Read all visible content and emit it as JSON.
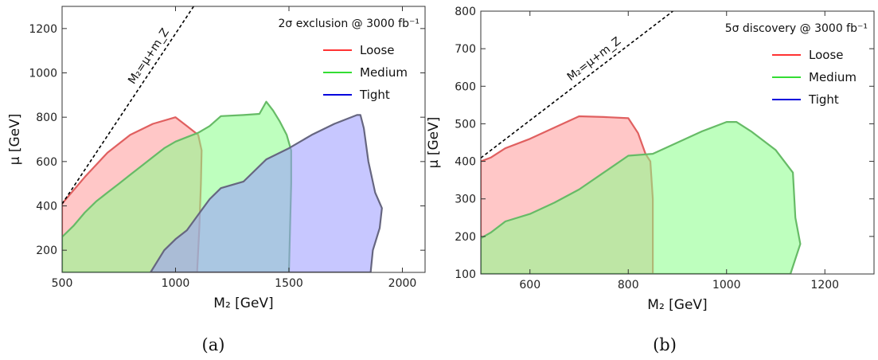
{
  "chart_data": [
    {
      "type": "area",
      "caption": "(a)",
      "title": "2σ exclusion @ 3000 fb⁻¹",
      "xlabel": "M₂ [GeV]",
      "ylabel": "μ [GeV]",
      "xlim": [
        500,
        2100
      ],
      "ylim": [
        100,
        1300
      ],
      "xticks": [
        500,
        1000,
        1500,
        2000
      ],
      "yticks": [
        200,
        400,
        600,
        800,
        1000,
        1200
      ],
      "grid": false,
      "legend_position": "top-right",
      "line": {
        "label": "M₂=μ+m_Z",
        "style": "dashed",
        "color": "#000000",
        "points": [
          [
            500,
            409
          ],
          [
            1080,
            1300
          ]
        ]
      },
      "series": [
        {
          "name": "Loose",
          "color": "#ff3333",
          "fill": "#ff9999",
          "border": "#e06060",
          "points": [
            [
              500,
              100
            ],
            [
              500,
              410
            ],
            [
              600,
              530
            ],
            [
              700,
              640
            ],
            [
              800,
              720
            ],
            [
              900,
              770
            ],
            [
              1000,
              800
            ],
            [
              1050,
              760
            ],
            [
              1100,
              720
            ],
            [
              1115,
              650
            ],
            [
              1112,
              500
            ],
            [
              1105,
              300
            ],
            [
              1095,
              100
            ]
          ]
        },
        {
          "name": "Medium",
          "color": "#33dd33",
          "fill": "#88ff88",
          "border": "#66bb66",
          "points": [
            [
              500,
              100
            ],
            [
              500,
              260
            ],
            [
              550,
              310
            ],
            [
              600,
              370
            ],
            [
              650,
              420
            ],
            [
              700,
              460
            ],
            [
              750,
              500
            ],
            [
              800,
              540
            ],
            [
              850,
              580
            ],
            [
              900,
              620
            ],
            [
              950,
              660
            ],
            [
              1000,
              690
            ],
            [
              1050,
              710
            ],
            [
              1100,
              730
            ],
            [
              1150,
              760
            ],
            [
              1200,
              805
            ],
            [
              1300,
              810
            ],
            [
              1370,
              815
            ],
            [
              1400,
              870
            ],
            [
              1430,
              830
            ],
            [
              1460,
              780
            ],
            [
              1490,
              720
            ],
            [
              1510,
              650
            ],
            [
              1510,
              500
            ],
            [
              1505,
              300
            ],
            [
              1500,
              100
            ]
          ]
        },
        {
          "name": "Tight",
          "color": "#0000dd",
          "fill": "#9999ff",
          "border": "#666680",
          "points": [
            [
              890,
              100
            ],
            [
              950,
              200
            ],
            [
              1000,
              250
            ],
            [
              1050,
              290
            ],
            [
              1100,
              360
            ],
            [
              1150,
              430
            ],
            [
              1200,
              480
            ],
            [
              1300,
              510
            ],
            [
              1400,
              610
            ],
            [
              1500,
              660
            ],
            [
              1600,
              720
            ],
            [
              1700,
              770
            ],
            [
              1800,
              810
            ],
            [
              1815,
              810
            ],
            [
              1830,
              750
            ],
            [
              1850,
              600
            ],
            [
              1880,
              460
            ],
            [
              1910,
              390
            ],
            [
              1900,
              300
            ],
            [
              1870,
              200
            ],
            [
              1860,
              100
            ]
          ]
        }
      ]
    },
    {
      "type": "area",
      "caption": "(b)",
      "title": "5σ discovery @ 3000 fb⁻¹",
      "xlabel": "M₂ [GeV]",
      "ylabel": "μ [GeV]",
      "xlim": [
        500,
        1300
      ],
      "ylim": [
        100,
        800
      ],
      "xticks": [
        600,
        800,
        1000,
        1200
      ],
      "yticks": [
        100,
        200,
        300,
        400,
        500,
        600,
        700,
        800
      ],
      "grid": false,
      "legend_position": "top-right",
      "line": {
        "label": "M₂=μ+m_Z",
        "style": "dashed",
        "color": "#000000",
        "points": [
          [
            500,
            409
          ],
          [
            891,
            800
          ]
        ]
      },
      "series": [
        {
          "name": "Loose",
          "color": "#ff3333",
          "fill": "#ff9999",
          "border": "#e06060",
          "points": [
            [
              500,
              100
            ],
            [
              500,
              400
            ],
            [
              520,
              410
            ],
            [
              550,
              435
            ],
            [
              600,
              460
            ],
            [
              650,
              490
            ],
            [
              700,
              520
            ],
            [
              750,
              518
            ],
            [
              800,
              515
            ],
            [
              820,
              475
            ],
            [
              835,
              420
            ],
            [
              845,
              400
            ],
            [
              850,
              300
            ],
            [
              850,
              200
            ],
            [
              850,
              100
            ]
          ]
        },
        {
          "name": "Medium",
          "color": "#33dd33",
          "fill": "#88ff88",
          "border": "#66bb66",
          "points": [
            [
              500,
              100
            ],
            [
              500,
              195
            ],
            [
              520,
              210
            ],
            [
              550,
              240
            ],
            [
              600,
              260
            ],
            [
              650,
              290
            ],
            [
              700,
              325
            ],
            [
              750,
              370
            ],
            [
              800,
              415
            ],
            [
              850,
              420
            ],
            [
              900,
              450
            ],
            [
              950,
              480
            ],
            [
              1000,
              505
            ],
            [
              1020,
              505
            ],
            [
              1050,
              480
            ],
            [
              1100,
              430
            ],
            [
              1135,
              370
            ],
            [
              1140,
              250
            ],
            [
              1150,
              180
            ],
            [
              1140,
              140
            ],
            [
              1130,
              100
            ]
          ]
        },
        {
          "name": "Tight",
          "color": "#0000dd",
          "points": []
        }
      ]
    }
  ]
}
